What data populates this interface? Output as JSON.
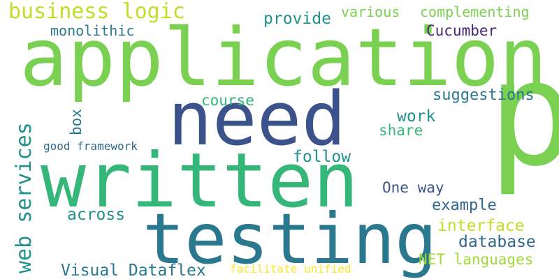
{
  "words": {
    "application": {
      "text": "application",
      "color": "#7ad151"
    },
    "need": {
      "text": "need",
      "color": "#3b528b"
    },
    "p": {
      "text": "p",
      "color": "#7ad151"
    },
    "written": {
      "text": "written",
      "color": "#35b779"
    },
    "testing": {
      "text": "testing",
      "color": "#2a788e"
    },
    "business_logic": {
      "text": "business logic",
      "color": "#bddf26"
    },
    "monolithic": {
      "text": "monolithic",
      "color": "#2a788e"
    },
    "provide": {
      "text": "provide",
      "color": "#21918c"
    },
    "various": {
      "text": "various",
      "color": "#7ad151"
    },
    "complementing": {
      "text": "complementing",
      "color": "#7ad151"
    },
    "cucumber": {
      "text": "Cucumber",
      "color": "#482878"
    },
    "course": {
      "text": "course",
      "color": "#35b779"
    },
    "suggestions": {
      "text": "suggestions",
      "color": "#2a788e"
    },
    "work": {
      "text": "work",
      "color": "#21918c"
    },
    "share": {
      "text": "share",
      "color": "#35b779"
    },
    "web_services": {
      "text": "web services",
      "color": "#21918c"
    },
    "box": {
      "text": "box",
      "color": "#2a788e"
    },
    "good_framework": {
      "text": "good framework",
      "color": "#31688e"
    },
    "follow": {
      "text": "follow",
      "color": "#21918c"
    },
    "one_way": {
      "text": "One way",
      "color": "#3b528b"
    },
    "example": {
      "text": "example",
      "color": "#31688e"
    },
    "across": {
      "text": "across",
      "color": "#21918c"
    },
    "interface": {
      "text": "interface",
      "color": "#bddf26"
    },
    "database": {
      "text": "database",
      "color": "#31688e"
    },
    "net_languages": {
      "text": "NET languages",
      "color": "#a0da39"
    },
    "visual_dataflex": {
      "text": "Visual Dataflex",
      "color": "#2a788e"
    },
    "facilitate_unified": {
      "text": "facilitate unified",
      "color": "#fde725"
    }
  }
}
